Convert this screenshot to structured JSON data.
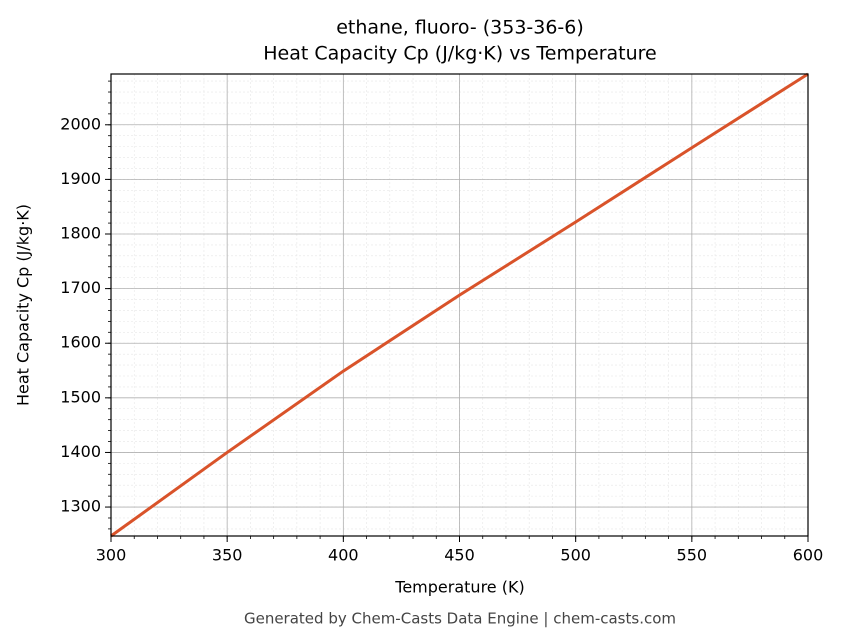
{
  "chart_data": {
    "type": "line",
    "title": "ethane, fluoro- (353-36-6)",
    "subtitle": "Heat Capacity Cp (J/kg·K) vs Temperature",
    "x_label": "Temperature (K)",
    "y_label": "Heat Capacity Cp (J/kg·K)",
    "footer": "Generated by Chem-Casts Data Engine | chem-casts.com",
    "x": [
      300,
      350,
      400,
      450,
      500,
      550,
      600
    ],
    "series": [
      {
        "name": "Heat Capacity Cp",
        "color": "#d9532a",
        "values": [
          1247,
          1400,
          1549,
          1688,
          1822,
          1958,
          2093
        ]
      }
    ],
    "xlim": [
      300,
      600
    ],
    "xticks": [
      300,
      350,
      400,
      450,
      500,
      550,
      600
    ],
    "ylim": [
      1247,
      2093
    ],
    "yticks": [
      1300,
      1400,
      1500,
      1600,
      1700,
      1800,
      1900,
      2000
    ],
    "grid": true,
    "minor_grid": true
  }
}
